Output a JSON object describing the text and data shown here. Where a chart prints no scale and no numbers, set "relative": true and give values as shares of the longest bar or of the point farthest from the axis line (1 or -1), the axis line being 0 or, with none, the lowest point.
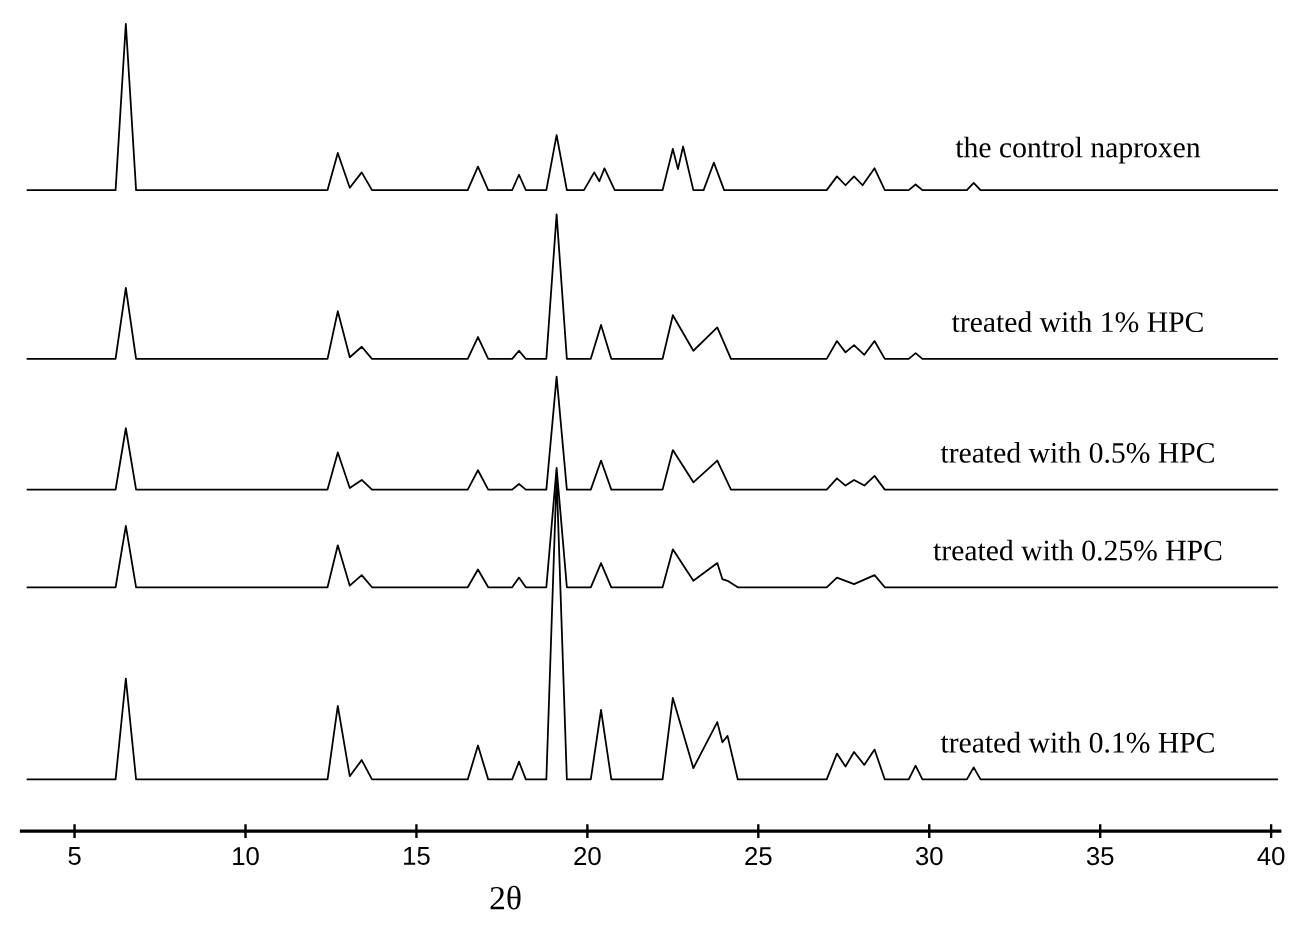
{
  "chart_data": {
    "type": "line",
    "relative": true,
    "xlabel": "2θ",
    "xlim": [
      3.4,
      40.3
    ],
    "xticks": [
      5,
      10,
      15,
      20,
      25,
      30,
      35,
      40
    ],
    "series": [
      {
        "name": "the control naproxen",
        "color": "#000000",
        "x": [
          3.6,
          6.2,
          6.5,
          6.8,
          12.4,
          12.7,
          13.05,
          13.4,
          13.7,
          16.5,
          16.8,
          17.1,
          17.8,
          18.0,
          18.2,
          18.8,
          19.1,
          19.4,
          19.9,
          20.2,
          20.35,
          20.5,
          20.8,
          22.2,
          22.5,
          22.65,
          22.8,
          23.1,
          23.4,
          23.7,
          24.0,
          27.0,
          27.3,
          27.55,
          27.8,
          28.05,
          28.4,
          28.7,
          29.4,
          29.6,
          29.8,
          31.1,
          31.3,
          31.5,
          40.2
        ],
        "values": [
          0.794,
          0.794,
          1.0,
          0.794,
          0.794,
          0.84,
          0.797,
          0.816,
          0.794,
          0.794,
          0.823,
          0.794,
          0.794,
          0.813,
          0.794,
          0.794,
          0.862,
          0.794,
          0.794,
          0.816,
          0.805,
          0.821,
          0.794,
          0.794,
          0.845,
          0.82,
          0.848,
          0.794,
          0.794,
          0.828,
          0.794,
          0.794,
          0.811,
          0.8,
          0.811,
          0.8,
          0.821,
          0.794,
          0.794,
          0.801,
          0.794,
          0.794,
          0.803,
          0.794,
          0.794
        ]
      },
      {
        "name": "treated with 1% HPC",
        "color": "#000000",
        "x": [
          3.6,
          6.2,
          6.5,
          6.8,
          12.4,
          12.7,
          13.05,
          13.4,
          13.7,
          16.5,
          16.8,
          17.1,
          17.8,
          18.0,
          18.2,
          18.8,
          19.1,
          19.4,
          20.1,
          20.4,
          20.7,
          22.2,
          22.5,
          23.1,
          23.8,
          24.2,
          27.0,
          27.3,
          27.55,
          27.8,
          28.1,
          28.4,
          28.7,
          29.4,
          29.6,
          29.8,
          40.2
        ],
        "values": [
          0.585,
          0.585,
          0.673,
          0.585,
          0.585,
          0.644,
          0.587,
          0.6,
          0.585,
          0.585,
          0.612,
          0.585,
          0.585,
          0.595,
          0.585,
          0.585,
          0.764,
          0.585,
          0.585,
          0.627,
          0.585,
          0.585,
          0.639,
          0.595,
          0.624,
          0.585,
          0.585,
          0.607,
          0.593,
          0.602,
          0.59,
          0.607,
          0.585,
          0.585,
          0.592,
          0.585,
          0.585
        ]
      },
      {
        "name": "treated with 0.5% HPC",
        "color": "#000000",
        "x": [
          3.6,
          6.2,
          6.5,
          6.8,
          12.4,
          12.7,
          13.05,
          13.4,
          13.7,
          16.5,
          16.8,
          17.1,
          17.8,
          18.0,
          18.2,
          18.8,
          19.1,
          19.4,
          20.1,
          20.4,
          20.7,
          22.2,
          22.5,
          23.1,
          23.8,
          24.2,
          27.0,
          27.3,
          27.55,
          27.8,
          28.1,
          28.4,
          28.7,
          40.2
        ],
        "values": [
          0.423,
          0.423,
          0.499,
          0.423,
          0.423,
          0.469,
          0.425,
          0.435,
          0.423,
          0.423,
          0.447,
          0.423,
          0.423,
          0.43,
          0.423,
          0.423,
          0.563,
          0.423,
          0.423,
          0.459,
          0.423,
          0.423,
          0.472,
          0.432,
          0.459,
          0.423,
          0.423,
          0.437,
          0.428,
          0.435,
          0.428,
          0.44,
          0.423,
          0.423
        ]
      },
      {
        "name": "treated with 0.25% HPC",
        "color": "#000000",
        "x": [
          3.6,
          6.2,
          6.5,
          6.8,
          12.4,
          12.7,
          13.05,
          13.4,
          13.7,
          16.5,
          16.8,
          17.1,
          17.8,
          18.0,
          18.2,
          18.8,
          19.1,
          19.4,
          20.1,
          20.4,
          20.7,
          22.2,
          22.5,
          23.1,
          23.8,
          23.95,
          24.1,
          24.4,
          27.0,
          27.3,
          27.8,
          28.4,
          28.7,
          40.2
        ],
        "values": [
          0.302,
          0.302,
          0.378,
          0.302,
          0.302,
          0.354,
          0.304,
          0.317,
          0.302,
          0.302,
          0.324,
          0.302,
          0.302,
          0.314,
          0.302,
          0.302,
          0.45,
          0.302,
          0.302,
          0.332,
          0.302,
          0.302,
          0.349,
          0.31,
          0.332,
          0.312,
          0.31,
          0.302,
          0.302,
          0.314,
          0.306,
          0.317,
          0.302,
          0.302
        ]
      },
      {
        "name": "treated with 0.1% HPC",
        "color": "#000000",
        "x": [
          3.6,
          6.2,
          6.5,
          6.8,
          12.4,
          12.7,
          13.05,
          13.4,
          13.7,
          16.5,
          16.8,
          17.1,
          17.8,
          18.0,
          18.2,
          18.8,
          19.1,
          19.4,
          20.1,
          20.4,
          20.7,
          22.2,
          22.5,
          23.1,
          23.8,
          23.95,
          24.1,
          24.4,
          27.0,
          27.3,
          27.55,
          27.8,
          28.1,
          28.4,
          28.7,
          29.4,
          29.6,
          29.8,
          31.1,
          31.3,
          31.5,
          40.2
        ],
        "values": [
          0.064,
          0.064,
          0.189,
          0.064,
          0.064,
          0.155,
          0.068,
          0.088,
          0.064,
          0.064,
          0.106,
          0.064,
          0.064,
          0.086,
          0.064,
          0.064,
          0.44,
          0.064,
          0.064,
          0.15,
          0.064,
          0.064,
          0.165,
          0.078,
          0.135,
          0.11,
          0.118,
          0.064,
          0.064,
          0.096,
          0.08,
          0.098,
          0.082,
          0.101,
          0.064,
          0.064,
          0.081,
          0.064,
          0.064,
          0.079,
          0.064,
          0.064
        ]
      }
    ]
  }
}
